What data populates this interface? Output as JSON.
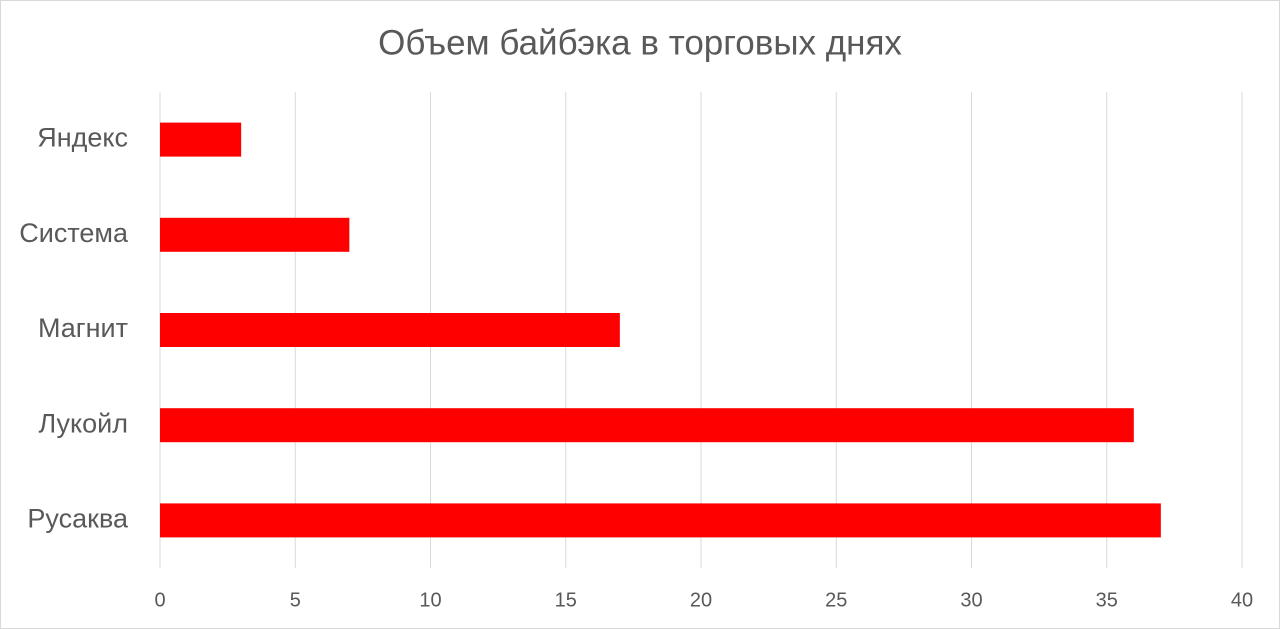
{
  "chart_data": {
    "type": "bar",
    "orientation": "horizontal",
    "title": "Объем байбэка в торговых днях",
    "categories": [
      "Яндекс",
      "Система",
      "Магнит",
      "Лукойл",
      "Русаква"
    ],
    "values": [
      3,
      7,
      17,
      36,
      37
    ],
    "color": "#ff0000",
    "xlim": [
      0,
      40
    ],
    "xticks": [
      0,
      5,
      10,
      15,
      20,
      25,
      30,
      35,
      40
    ],
    "grid": true
  }
}
